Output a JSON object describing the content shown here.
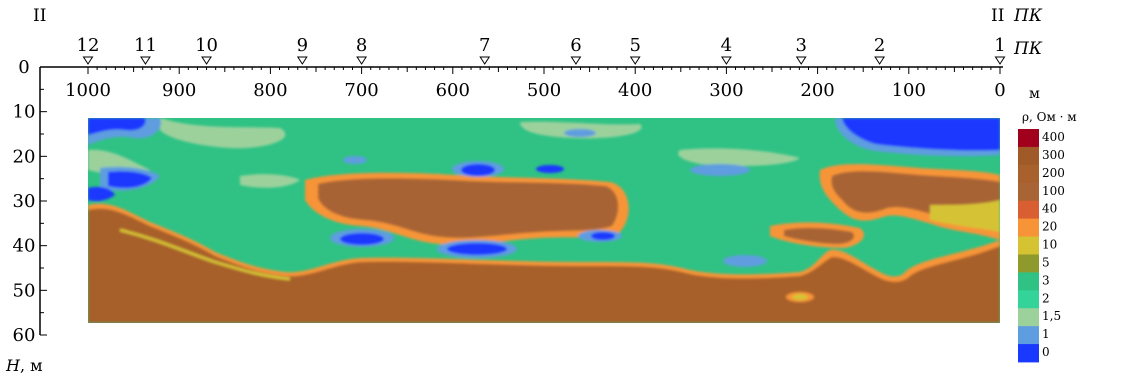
{
  "chart_data": {
    "type": "heatmap",
    "title": "",
    "profile_label_left": "II",
    "profile_label_right": "II",
    "picket_axis_label": "ПК",
    "distance_unit": "м",
    "depth_axis_label": "H",
    "depth_axis_unit": ", м",
    "pickets": [
      {
        "label": "12",
        "x": 1000
      },
      {
        "label": "11",
        "x": 937
      },
      {
        "label": "10",
        "x": 870
      },
      {
        "label": "9",
        "x": 765
      },
      {
        "label": "8",
        "x": 700
      },
      {
        "label": "7",
        "x": 565
      },
      {
        "label": "6",
        "x": 465
      },
      {
        "label": "5",
        "x": 400
      },
      {
        "label": "4",
        "x": 300
      },
      {
        "label": "3",
        "x": 218
      },
      {
        "label": "2",
        "x": 132
      },
      {
        "label": "1",
        "x": 0
      }
    ],
    "x_ticks": [
      1000,
      900,
      800,
      700,
      600,
      500,
      400,
      300,
      200,
      100,
      0
    ],
    "x_tick_labels": [
      "1000",
      "900",
      "800",
      "700",
      "600",
      "500",
      "400",
      "300",
      "200",
      "100",
      "0"
    ],
    "xlim": [
      1000,
      0
    ],
    "y_ticks": [
      0,
      10,
      20,
      30,
      40,
      50,
      60
    ],
    "y_tick_labels": [
      "0",
      "10",
      "20",
      "30",
      "40",
      "50",
      "60"
    ],
    "ylim": [
      0,
      60
    ],
    "section_depth_range": [
      12,
      56
    ],
    "colorbar": {
      "title": "ρ, Ом · м",
      "levels": [
        "400",
        "300",
        "200",
        "100",
        "40",
        "20",
        "10",
        "5",
        "3",
        "2",
        "1,5",
        "1",
        "0"
      ],
      "colors": [
        "#a0001c",
        "#a05a28",
        "#a8602c",
        "#a86434",
        "#d95f33",
        "#f79437",
        "#d6c334",
        "#8e9a2b",
        "#2fc284",
        "#34d39a",
        "#9cd19c",
        "#5e9de0",
        "#1a39ff"
      ]
    },
    "bodies": [
      {
        "value": "0",
        "color": "#1a39ff",
        "region": "top-left"
      },
      {
        "value": "0",
        "color": "#1a39ff",
        "region": "top-right"
      },
      {
        "value": "100",
        "color": "#a86434",
        "region": "central"
      },
      {
        "value": "100",
        "color": "#a86434",
        "region": "bottom"
      },
      {
        "value": "3",
        "color": "#2fc284",
        "region": "upper-layer"
      }
    ]
  }
}
